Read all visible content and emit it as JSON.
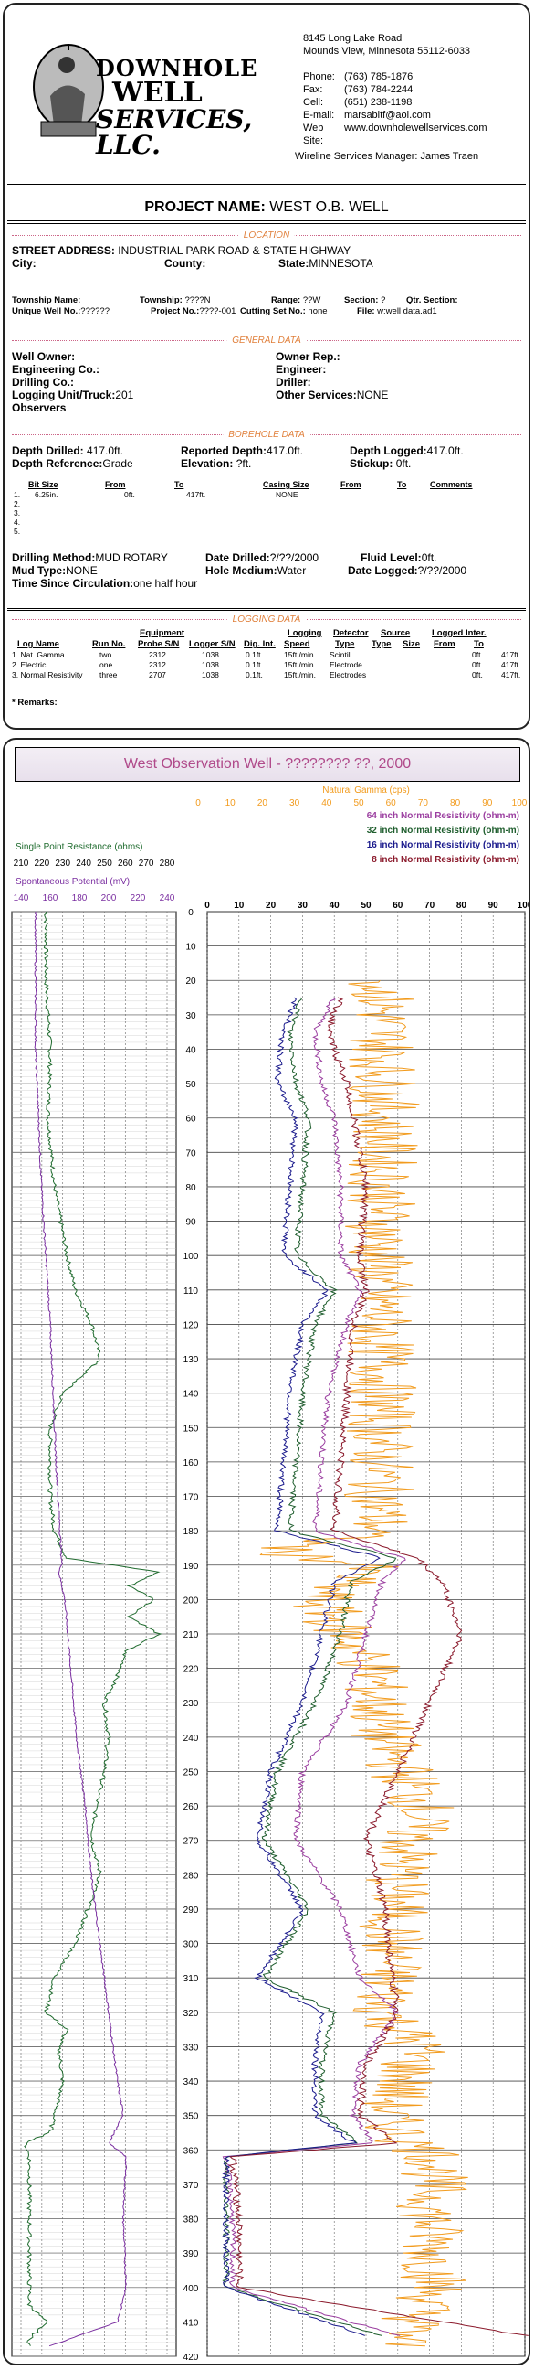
{
  "company": {
    "logo_line1": "DOWNHOLE",
    "logo_line2": "WELL",
    "logo_line3": "SERVICES, LLC.",
    "address_line1": "8145 Long Lake Road",
    "address_line2": "Mounds View, Minnesota  55112-6033",
    "contacts": [
      {
        "k": "Phone:",
        "v": "(763) 785-1876"
      },
      {
        "k": "Fax:",
        "v": "(763) 784-2244"
      },
      {
        "k": "Cell:",
        "v": "(651) 238-1198"
      },
      {
        "k": "E-mail:",
        "v": "marsabitf@aol.com"
      },
      {
        "k": "Web Site:",
        "v": "www.downholewellservices.com"
      }
    ],
    "manager": "Wireline Services Manager: James Traen"
  },
  "project": {
    "label": "PROJECT NAME:",
    "value": "WEST O.B. WELL"
  },
  "location": {
    "section": "LOCATION",
    "street_label": "STREET ADDRESS:",
    "street_value": "INDUSTRIAL PARK ROAD & STATE HIGHWAY",
    "city_label": "City:",
    "county_label": "County:",
    "state_label": "State:",
    "state_value": "MINNESOTA",
    "township_name_label": "Township Name:",
    "township_label": "Township:",
    "township_value": "????N",
    "range_label": "Range:",
    "range_value": "??W",
    "section_label": "Section:",
    "section_value": "?",
    "qtr_label": "Qtr. Section:",
    "unique_label": "Unique Well No.:",
    "unique_value": "??????",
    "projno_label": "Project No.:",
    "projno_value": "????-001",
    "cutting_label": "Cutting Set No.:",
    "cutting_value": "none",
    "file_label": "File:",
    "file_value": "w:well data.ad1"
  },
  "general": {
    "section": "GENERAL DATA",
    "well_owner": "Well Owner:",
    "owner_rep": "Owner Rep.:",
    "eng_co": "Engineering Co.:",
    "engineer": "Engineer:",
    "drilling_co": "Drilling Co.:",
    "driller": "Driller:",
    "logging_unit_label": "Logging Unit/Truck:",
    "logging_unit_value": "201",
    "other_services_label": "Other Services:",
    "other_services_value": "NONE",
    "observers": "Observers"
  },
  "borehole": {
    "section": "BOREHOLE DATA",
    "depth_drilled_label": "Depth Drilled:",
    "depth_drilled_value": "417.0ft.",
    "reported_depth_label": "Reported Depth:",
    "reported_depth_value": "417.0ft.",
    "depth_logged_label": "Depth Logged:",
    "depth_logged_value": "417.0ft.",
    "depth_ref_label": "Depth Reference:",
    "depth_ref_value": "Grade",
    "elevation_label": "Elevation:",
    "elevation_value": "?ft.",
    "stickup_label": "Stickup:",
    "stickup_value": "0ft.",
    "headers": [
      "Bit Size",
      "From",
      "To",
      "Casing Size",
      "From",
      "To",
      "Comments"
    ],
    "rows": [
      {
        "n": "1.",
        "bit": "6.25in.",
        "from": "0ft.",
        "to": "417ft.",
        "casing": "NONE"
      },
      {
        "n": "2.",
        "bit": "",
        "from": "",
        "to": "",
        "casing": ""
      },
      {
        "n": "3.",
        "bit": "",
        "from": "",
        "to": "",
        "casing": ""
      },
      {
        "n": "4.",
        "bit": "",
        "from": "",
        "to": "",
        "casing": ""
      },
      {
        "n": "5.",
        "bit": "",
        "from": "",
        "to": "",
        "casing": ""
      }
    ],
    "drilling_method_label": "Drilling Method:",
    "drilling_method_value": "MUD ROTARY",
    "date_drilled_label": "Date Drilled:",
    "date_drilled_value": "?/??/2000",
    "fluid_level_label": "Fluid Level:",
    "fluid_level_value": "0ft.",
    "mud_type_label": "Mud Type:",
    "mud_type_value": "NONE",
    "hole_medium_label": "Hole Medium:",
    "hole_medium_value": "Water",
    "date_logged_label": "Date Logged:",
    "date_logged_value": "?/??/2000",
    "time_since_label": "Time Since Circulation:",
    "time_since_value": "one half hour"
  },
  "logging": {
    "section": "LOGGING DATA",
    "group_equipment": "Equipment",
    "group_logging": "Logging",
    "group_detector": "Detector",
    "group_source": "Source",
    "group_logged": "Logged Inter.",
    "headers": [
      "Log Name",
      "Run No.",
      "Probe S/N",
      "Logger S/N",
      "Dig. Int.",
      "Speed",
      "Type",
      "Type",
      "Size",
      "From",
      "To"
    ],
    "rows": [
      {
        "name": "1. Nat. Gamma",
        "run": "two",
        "probe": "2312",
        "logger": "1038",
        "dig": "0.1ft.",
        "speed": "15ft./min.",
        "dtype": "Scintill.",
        "from": "0ft.",
        "to": "417ft."
      },
      {
        "name": "2. Electric",
        "run": "one",
        "probe": "2312",
        "logger": "1038",
        "dig": "0.1ft.",
        "speed": "15ft./min.",
        "dtype": "Electrode",
        "from": "0ft.",
        "to": "417ft."
      },
      {
        "name": "3. Normal Resistivity",
        "run": "three",
        "probe": "2707",
        "logger": "1038",
        "dig": "0.1ft.",
        "speed": "15ft./min.",
        "dtype": "Electrodes",
        "from": "0ft.",
        "to": "417ft."
      }
    ],
    "remarks": "* Remarks:"
  },
  "log": {
    "title": "West Observation Well - ???????? ??, 2000",
    "colors": {
      "gamma": "#f29b1d",
      "n64": "#9b3fa0",
      "n32": "#1f5e2e",
      "n16": "#1a1a8c",
      "n8": "#8b1a2c",
      "spr": "#1f6b2e",
      "sp": "#7a2ea0"
    }
  },
  "chart_data": {
    "type": "line",
    "title": "West Observation Well - ???????? ??, 2000",
    "depth_axis": {
      "label": "",
      "range": [
        0,
        420
      ],
      "ticks": [
        0,
        10,
        20,
        30,
        40,
        50,
        60,
        70,
        80,
        90,
        100,
        110,
        120,
        130,
        140,
        150,
        160,
        170,
        180,
        190,
        200,
        210,
        220,
        230,
        240,
        250,
        260,
        270,
        280,
        290,
        300,
        310,
        320,
        330,
        340,
        350,
        360,
        370,
        380,
        390,
        400,
        410,
        420
      ]
    },
    "tracks": [
      {
        "axes": [
          {
            "label": "Single Point Resistance (ohms)",
            "range": [
              210,
              280
            ],
            "ticks": [
              210,
              220,
              230,
              240,
              250,
              260,
              270,
              280
            ]
          },
          {
            "label": "Spontaneous Potential (mV)",
            "range": [
              140,
              240
            ],
            "ticks": [
              140,
              160,
              180,
              200,
              220,
              240
            ]
          }
        ],
        "series": [
          {
            "name": "Single Point Resistance (ohms)",
            "color_key": "spr",
            "axis": 0,
            "depth": [
              0,
              20,
              40,
              60,
              80,
              100,
              110,
              120,
              130,
              140,
              150,
              160,
              170,
              180,
              188,
              192,
              196,
              200,
              205,
              210,
              215,
              220,
              230,
              240,
              250,
              260,
              270,
              280,
              290,
              300,
              310,
              320,
              325,
              330,
              340,
              350,
              355,
              358,
              362,
              370,
              380,
              390,
              400,
              405,
              410,
              415,
              417
            ],
            "values": [
              222,
              222,
              224,
              223,
              226,
              232,
              236,
              244,
              248,
              230,
              224,
              224,
              224,
              226,
              232,
              276,
              262,
              274,
              262,
              276,
              260,
              258,
              250,
              252,
              250,
              246,
              244,
              248,
              242,
              236,
              226,
              222,
              232,
              228,
              230,
              226,
              224,
              212,
              214,
              214,
              214,
              214,
              214,
              214,
              222,
              214,
              214
            ]
          },
          {
            "name": "Spontaneous Potential (mV)",
            "color_key": "sp",
            "axis": 1,
            "depth": [
              0,
              40,
              80,
              120,
              160,
              190,
              192,
              200,
              220,
              240,
              260,
              280,
              300,
              320,
              340,
              350,
              358,
              362,
              380,
              400,
              410,
              417
            ],
            "values": [
              150,
              150,
              154,
              160,
              164,
              168,
              166,
              170,
              174,
              178,
              184,
              188,
              194,
              200,
              206,
              210,
              200,
              212,
              210,
              212,
              206,
              160
            ]
          }
        ]
      },
      {
        "axes": [
          {
            "label": "Natural Gamma (cps)",
            "range": [
              0,
              100
            ],
            "ticks": [
              0,
              10,
              20,
              30,
              40,
              50,
              60,
              70,
              80,
              90,
              100
            ]
          },
          {
            "label": "64 inch Normal Resistivity (ohm-m)",
            "range": [
              0,
              100
            ]
          },
          {
            "label": "32 inch Normal Resistivity (ohm-m)",
            "range": [
              0,
              100
            ]
          },
          {
            "label": "16 inch Normal Resistivity (ohm-m)",
            "range": [
              0,
              100
            ]
          },
          {
            "label": "8 inch Normal Resistivity (ohm-m)",
            "range": [
              0,
              100
            ],
            "ticks": [
              0,
              10,
              20,
              30,
              40,
              50,
              60,
              70,
              80,
              90,
              100
            ]
          }
        ],
        "series": [
          {
            "name": "Natural Gamma (cps)",
            "color_key": "gamma",
            "depth": [
              20,
              60,
              100,
              140,
              180,
              186,
              190,
              200,
              220,
              240,
              260,
              280,
              300,
              320,
              330,
              340,
              350,
              358,
              362,
              380,
              400,
              417
            ],
            "values": [
              55,
              56,
              54,
              55,
              54,
              20,
              50,
              35,
              52,
              55,
              68,
              60,
              58,
              56,
              66,
              62,
              56,
              64,
              72,
              70,
              72,
              60
            ]
          },
          {
            "name": "64 inch Normal Resistivity (ohm-m)",
            "color_key": "n64",
            "depth": [
              25,
              35,
              50,
              60,
              80,
              100,
              110,
              120,
              140,
              160,
              180,
              188,
              195,
              210,
              230,
              250,
              270,
              290,
              310,
              320,
              335,
              350,
              358,
              362,
              380,
              400,
              414
            ],
            "values": [
              40,
              34,
              36,
              40,
              42,
              42,
              48,
              44,
              38,
              36,
              34,
              62,
              55,
              50,
              44,
              30,
              28,
              42,
              48,
              60,
              48,
              46,
              52,
              6,
              8,
              8,
              60
            ]
          },
          {
            "name": "32 inch Normal Resistivity (ohm-m)",
            "color_key": "n32",
            "depth": [
              25,
              35,
              50,
              60,
              80,
              100,
              110,
              120,
              140,
              160,
              180,
              188,
              195,
              210,
              230,
              250,
              270,
              290,
              310,
              320,
              335,
              350,
              358,
              362,
              380,
              400,
              414
            ],
            "values": [
              30,
              26,
              28,
              32,
              30,
              28,
              40,
              34,
              30,
              28,
              26,
              60,
              45,
              42,
              34,
              22,
              18,
              32,
              18,
              40,
              36,
              36,
              48,
              6,
              6,
              6,
              55
            ]
          },
          {
            "name": "16 inch Normal Resistivity (ohm-m)",
            "color_key": "n16",
            "depth": [
              25,
              35,
              50,
              60,
              80,
              100,
              110,
              120,
              140,
              160,
              180,
              188,
              195,
              210,
              230,
              250,
              270,
              290,
              310,
              320,
              335,
              350,
              358,
              362,
              380,
              400,
              414
            ],
            "values": [
              28,
              24,
              22,
              28,
              26,
              24,
              38,
              30,
              26,
              24,
              22,
              55,
              40,
              36,
              30,
              20,
              16,
              30,
              16,
              36,
              34,
              34,
              46,
              6,
              6,
              6,
              50
            ]
          },
          {
            "name": "8 inch Normal Resistivity (ohm-m)",
            "color_key": "n8",
            "depth": [
              25,
              35,
              50,
              60,
              80,
              100,
              110,
              120,
              140,
              160,
              180,
              188,
              195,
              210,
              230,
              250,
              270,
              290,
              310,
              320,
              335,
              350,
              358,
              362,
              380,
              400,
              414
            ],
            "values": [
              42,
              38,
              44,
              46,
              50,
              48,
              50,
              46,
              44,
              42,
              40,
              66,
              74,
              80,
              70,
              60,
              50,
              56,
              58,
              60,
              50,
              48,
              60,
              8,
              10,
              10,
              100
            ]
          }
        ]
      }
    ]
  }
}
